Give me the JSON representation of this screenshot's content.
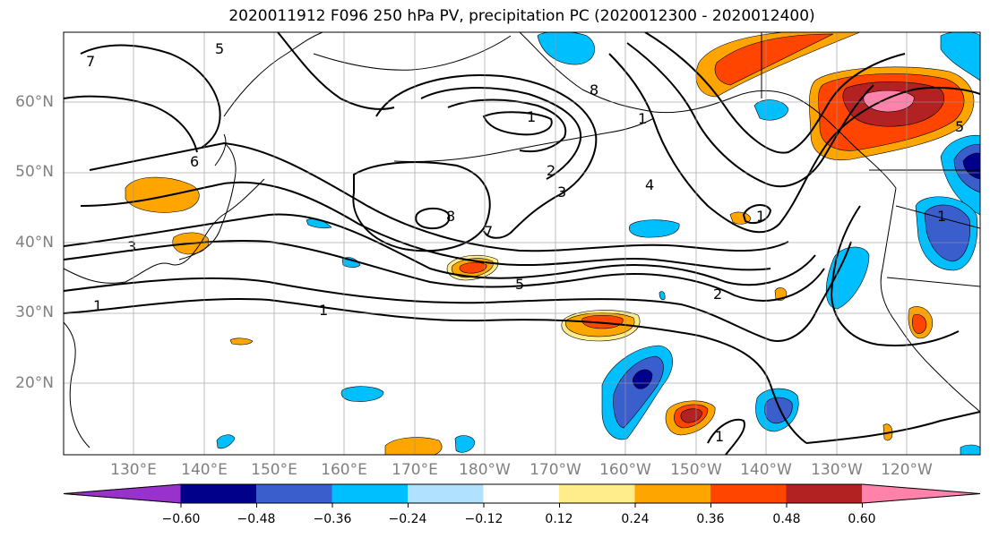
{
  "title": "2020011912 F096 250 hPa PV, precipitation PC (2020012300 - 2020012400)",
  "lat_ticks": [
    "60°N",
    "50°N",
    "40°N",
    "30°N",
    "20°N"
  ],
  "lon_ticks": [
    "130°E",
    "140°E",
    "150°E",
    "160°E",
    "170°E",
    "180°W",
    "170°W",
    "160°W",
    "150°W",
    "140°W",
    "130°W",
    "120°W"
  ],
  "contour_labels": [
    "7",
    "5",
    "6",
    "3",
    "1",
    "1",
    "1",
    "2",
    "3",
    "8",
    "7",
    "5",
    "2",
    "4",
    "8",
    "1",
    "1",
    "1",
    "5",
    "1"
  ],
  "colorbar": {
    "ticks": [
      "−0.60",
      "−0.48",
      "−0.36",
      "−0.24",
      "−0.12",
      "0.12",
      "0.24",
      "0.36",
      "0.48",
      "0.60"
    ],
    "colors": [
      "#9932cc",
      "#00008b",
      "#3a5fcd",
      "#00bfff",
      "#b0e2ff",
      "#ffffff",
      "#ffec8b",
      "#ffa500",
      "#ff4500",
      "#b22222",
      "#ff82ab"
    ]
  }
}
